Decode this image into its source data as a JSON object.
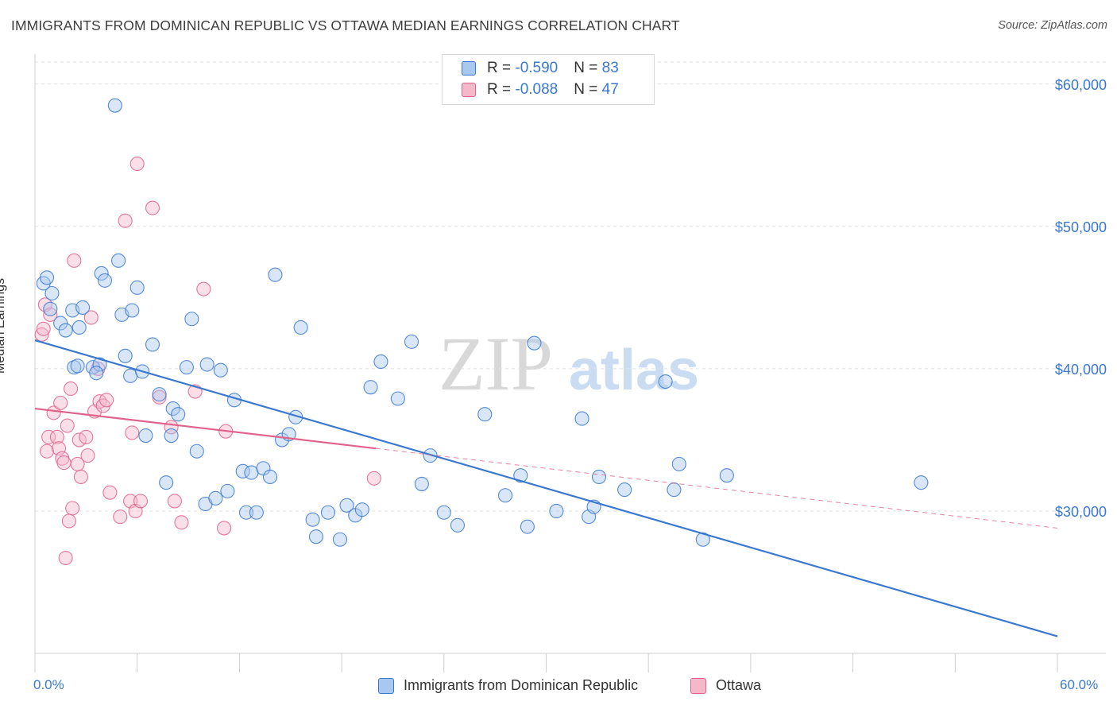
{
  "title": "IMMIGRANTS FROM DOMINICAN REPUBLIC VS OTTAWA MEDIAN EARNINGS CORRELATION CHART",
  "source": "Source: ZipAtlas.com",
  "watermark": {
    "zip": "ZIP",
    "atlas": "atlas"
  },
  "colors": {
    "blue": "#3a78d0",
    "blue_fill": "#a9c8ef",
    "pink": "#e0628a",
    "pink_fill": "#f5b8cb",
    "grid": "#e2e2e2"
  },
  "legend": {
    "rows": [
      {
        "r_label": "R = ",
        "r_value": "-0.590",
        "n_label": "N = ",
        "n_value": "83"
      },
      {
        "r_label": "R = ",
        "r_value": "-0.088",
        "n_label": "N = ",
        "n_value": "47"
      }
    ]
  },
  "bottom_legend": {
    "series1": "Immigrants from Dominican Republic",
    "series2": "Ottawa"
  },
  "x_axis": {
    "min_label": "0.0%",
    "max_label": "60.0%"
  },
  "chart_data": {
    "type": "scatter",
    "title": "IMMIGRANTS FROM DOMINICAN REPUBLIC VS OTTAWA MEDIAN EARNINGS CORRELATION CHART",
    "xlabel": "",
    "ylabel": "Median Earnings",
    "xlim": [
      0,
      60
    ],
    "ylim": [
      20000,
      62000
    ],
    "y_ticks": [
      30000,
      40000,
      50000,
      60000
    ],
    "y_tick_labels": [
      "$30,000",
      "$40,000",
      "$50,000",
      "$60,000"
    ],
    "grid": true,
    "legend_position": "top-center",
    "series": [
      {
        "name": "Immigrants from Dominican Republic",
        "color": "#3a78d0",
        "trend": {
          "x": [
            0,
            60
          ],
          "y": [
            42000,
            21200
          ],
          "dashed_extension": false
        },
        "points": [
          [
            0.5,
            46000
          ],
          [
            0.7,
            46400
          ],
          [
            1.0,
            45300
          ],
          [
            0.9,
            44200
          ],
          [
            1.5,
            43200
          ],
          [
            1.8,
            42700
          ],
          [
            2.2,
            44100
          ],
          [
            2.6,
            42900
          ],
          [
            2.8,
            44300
          ],
          [
            2.3,
            40100
          ],
          [
            2.5,
            40200
          ],
          [
            3.4,
            40100
          ],
          [
            3.8,
            40300
          ],
          [
            3.6,
            39700
          ],
          [
            3.9,
            46700
          ],
          [
            4.1,
            46200
          ],
          [
            4.7,
            58500
          ],
          [
            4.9,
            47600
          ],
          [
            5.1,
            43800
          ],
          [
            5.3,
            40900
          ],
          [
            5.6,
            39500
          ],
          [
            5.7,
            44100
          ],
          [
            6.0,
            45700
          ],
          [
            6.3,
            39800
          ],
          [
            6.5,
            35300
          ],
          [
            6.9,
            41700
          ],
          [
            7.3,
            38200
          ],
          [
            7.7,
            32000
          ],
          [
            8.1,
            37200
          ],
          [
            8.4,
            36800
          ],
          [
            8.0,
            35300
          ],
          [
            8.9,
            40100
          ],
          [
            9.2,
            43500
          ],
          [
            9.5,
            34200
          ],
          [
            10.0,
            30500
          ],
          [
            10.1,
            40300
          ],
          [
            10.6,
            30900
          ],
          [
            10.9,
            39900
          ],
          [
            11.3,
            31400
          ],
          [
            11.7,
            37800
          ],
          [
            12.2,
            32800
          ],
          [
            12.4,
            29900
          ],
          [
            12.7,
            32700
          ],
          [
            13.0,
            29900
          ],
          [
            13.4,
            33000
          ],
          [
            13.8,
            32400
          ],
          [
            14.1,
            46600
          ],
          [
            14.5,
            35000
          ],
          [
            14.9,
            35400
          ],
          [
            15.3,
            36600
          ],
          [
            15.6,
            42900
          ],
          [
            16.3,
            29400
          ],
          [
            16.5,
            28200
          ],
          [
            17.2,
            29900
          ],
          [
            17.9,
            28000
          ],
          [
            18.3,
            30400
          ],
          [
            18.8,
            29700
          ],
          [
            19.2,
            30100
          ],
          [
            19.7,
            38700
          ],
          [
            20.3,
            40500
          ],
          [
            21.3,
            37900
          ],
          [
            22.1,
            41900
          ],
          [
            22.7,
            31900
          ],
          [
            23.2,
            33900
          ],
          [
            24.0,
            29900
          ],
          [
            24.8,
            29000
          ],
          [
            26.4,
            36800
          ],
          [
            27.6,
            31100
          ],
          [
            28.5,
            32500
          ],
          [
            28.9,
            28900
          ],
          [
            29.3,
            41800
          ],
          [
            30.6,
            30000
          ],
          [
            32.1,
            36500
          ],
          [
            32.5,
            29600
          ],
          [
            32.8,
            30300
          ],
          [
            33.1,
            32400
          ],
          [
            34.6,
            31500
          ],
          [
            37.0,
            39100
          ],
          [
            37.5,
            31500
          ],
          [
            37.8,
            33300
          ],
          [
            39.2,
            28000
          ],
          [
            40.6,
            32500
          ],
          [
            52.0,
            32000
          ]
        ]
      },
      {
        "name": "Ottawa",
        "color": "#e0628a",
        "trend": {
          "x": [
            0,
            20
          ],
          "y": [
            37200,
            34400
          ],
          "dashed_extension": {
            "x": [
              20,
              60
            ],
            "y": [
              34400,
              28800
            ]
          }
        },
        "points": [
          [
            0.4,
            42400
          ],
          [
            0.5,
            42800
          ],
          [
            0.6,
            44500
          ],
          [
            0.7,
            34200
          ],
          [
            0.8,
            35200
          ],
          [
            0.9,
            43800
          ],
          [
            1.1,
            36900
          ],
          [
            1.3,
            35200
          ],
          [
            1.4,
            34400
          ],
          [
            1.5,
            37600
          ],
          [
            1.6,
            33700
          ],
          [
            1.7,
            33400
          ],
          [
            1.8,
            26700
          ],
          [
            1.9,
            36000
          ],
          [
            2.0,
            29300
          ],
          [
            2.1,
            38600
          ],
          [
            2.2,
            30200
          ],
          [
            2.3,
            47600
          ],
          [
            2.5,
            33300
          ],
          [
            2.6,
            35000
          ],
          [
            2.7,
            32400
          ],
          [
            3.0,
            35200
          ],
          [
            3.1,
            33900
          ],
          [
            3.3,
            43600
          ],
          [
            3.5,
            37000
          ],
          [
            3.7,
            40000
          ],
          [
            3.8,
            37700
          ],
          [
            4.0,
            37400
          ],
          [
            4.2,
            37800
          ],
          [
            4.4,
            31300
          ],
          [
            5.0,
            29600
          ],
          [
            5.3,
            50400
          ],
          [
            5.6,
            30700
          ],
          [
            5.7,
            35500
          ],
          [
            5.9,
            30000
          ],
          [
            6.0,
            54400
          ],
          [
            6.2,
            30700
          ],
          [
            6.9,
            51300
          ],
          [
            7.3,
            38000
          ],
          [
            8.0,
            35900
          ],
          [
            8.2,
            30700
          ],
          [
            8.6,
            29200
          ],
          [
            9.4,
            38400
          ],
          [
            9.9,
            45600
          ],
          [
            11.1,
            28800
          ],
          [
            11.2,
            35600
          ],
          [
            19.9,
            32300
          ]
        ]
      }
    ]
  }
}
